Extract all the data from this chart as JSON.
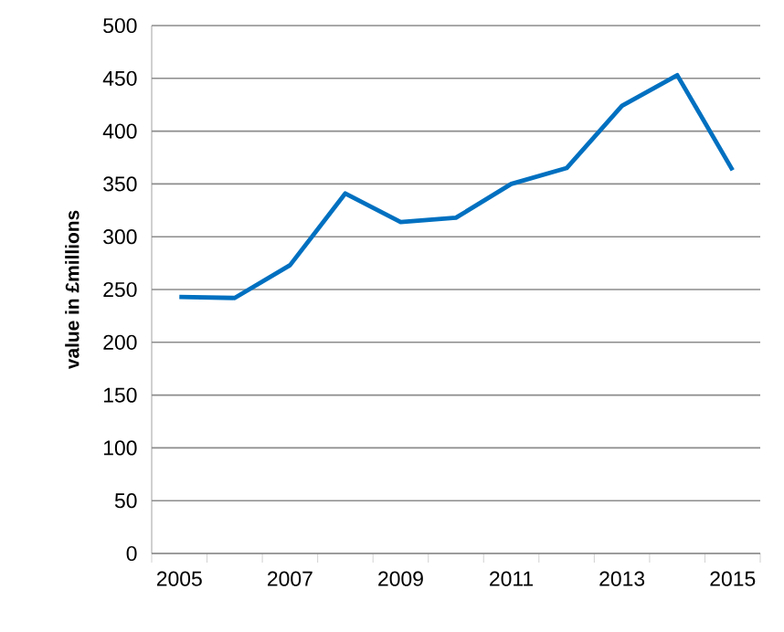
{
  "chart_data": {
    "type": "line",
    "ylabel": "value in £millions",
    "categories": [
      "2005",
      null,
      "2007",
      null,
      "2009",
      null,
      "2011",
      null,
      "2013",
      null,
      "2015"
    ],
    "series": [
      {
        "color": "#0070c0",
        "values": [
          243,
          242,
          273,
          341,
          314,
          318,
          350,
          365,
          424,
          453,
          363
        ]
      }
    ],
    "ylim": [
      0,
      500
    ],
    "yticks": [
      0,
      50,
      100,
      150,
      200,
      250,
      300,
      350,
      400,
      450,
      500
    ],
    "grid": "y",
    "marker": "none",
    "line_style": "solid"
  }
}
